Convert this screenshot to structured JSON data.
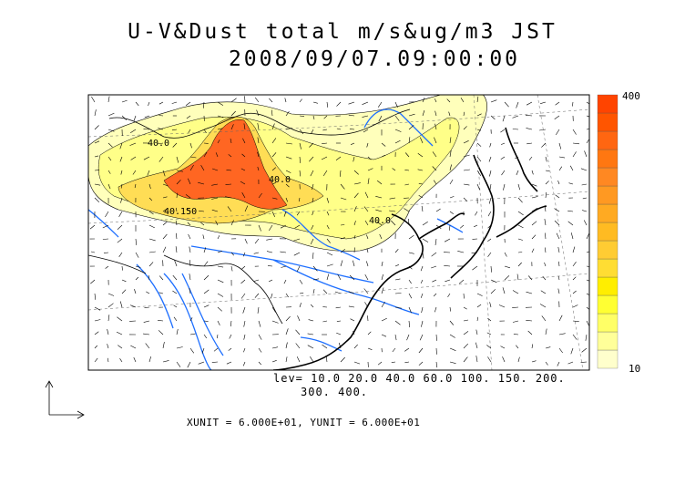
{
  "title": {
    "line1": "U-V&Dust total m/s&ug/m3 JST",
    "line2": "2008/09/07.09:00:00"
  },
  "contour_levels": {
    "line1": "lev= 10.0 20.0 40.0 60.0 100. 150. 200.",
    "line2": "300. 400."
  },
  "unit_text": "XUNIT = 6.000E+01, YUNIT = 6.000E+01",
  "colorbar": {
    "max_label": "400",
    "min_label": "10",
    "colors": [
      "#ffffcc",
      "#ffff99",
      "#ffff66",
      "#ffff33",
      "#ffee00",
      "#ffdd33",
      "#ffcc33",
      "#ffbb22",
      "#ffaa22",
      "#ff9922",
      "#ff8822",
      "#ff7711",
      "#ff6611",
      "#ff5500",
      "#ff4400"
    ]
  },
  "contour_labels": [
    "40.0",
    "40.0",
    "40.150",
    "40.0"
  ],
  "colors": {
    "river": "#1e6fff",
    "coast": "#000000",
    "dust_low": "#ffffbb",
    "dust_mid": "#ffdd55",
    "dust_high": "#ff6622"
  }
}
